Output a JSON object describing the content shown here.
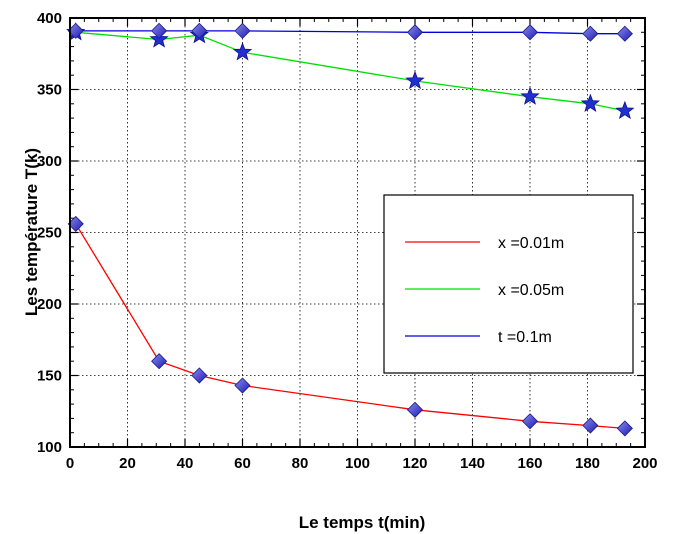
{
  "chart_data": {
    "type": "line",
    "xlabel": "Le temps t(min)",
    "ylabel": "Les température T(k)",
    "xlim": [
      0,
      200
    ],
    "ylim": [
      100,
      400
    ],
    "xticks": [
      0,
      20,
      40,
      60,
      80,
      100,
      120,
      140,
      160,
      180,
      200
    ],
    "yticks": [
      100,
      150,
      200,
      250,
      300,
      350,
      400
    ],
    "grid": true,
    "legend_position": "right-middle",
    "series": [
      {
        "name": "x =0.01m",
        "color": "#ff0000",
        "marker": "diamond",
        "x": [
          2,
          31,
          45,
          60,
          120,
          160,
          181,
          193
        ],
        "y": [
          256,
          160,
          150,
          143,
          126,
          118,
          115,
          113
        ]
      },
      {
        "name": "x =0.05m",
        "color": "#00e000",
        "marker": "star",
        "x": [
          2,
          31,
          45,
          60,
          120,
          160,
          181,
          193
        ],
        "y": [
          390,
          385,
          388,
          376,
          356,
          345,
          340,
          335
        ]
      },
      {
        "name": "t =0.1m",
        "color": "#0000dd",
        "marker": "diamond",
        "x": [
          2,
          31,
          45,
          60,
          120,
          160,
          181,
          193
        ],
        "y": [
          391,
          391,
          391,
          391,
          390,
          390,
          389,
          389
        ]
      }
    ]
  }
}
